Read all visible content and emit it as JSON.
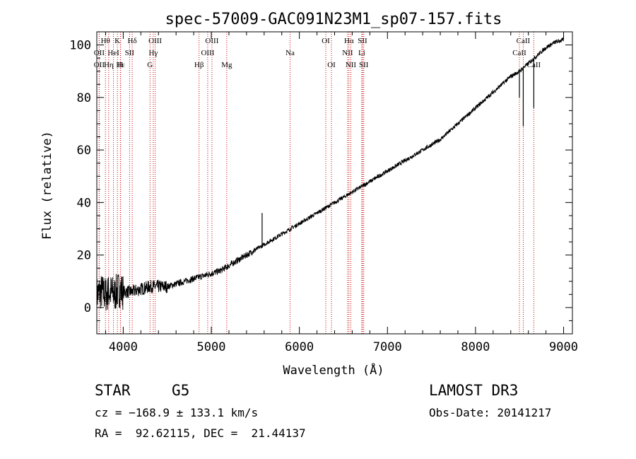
{
  "chart_data": {
    "type": "line",
    "title": "spec-57009-GAC091N23M1_sp07-157.fits",
    "xlabel": "Wavelength (Å)",
    "ylabel": "Flux (relative)",
    "xlim": [
      3700,
      9100
    ],
    "ylim": [
      -10,
      105
    ],
    "xticks": [
      4000,
      5000,
      6000,
      7000,
      8000,
      9000
    ],
    "xtick_labels": [
      "4000",
      "5000",
      "6000",
      "7000",
      "8000",
      "9000"
    ],
    "yticks": [
      0,
      20,
      40,
      60,
      80,
      100
    ],
    "ytick_labels": [
      "0",
      "20",
      "40",
      "60",
      "80",
      "100"
    ],
    "series": [
      {
        "name": "spectrum",
        "x": [
          3700,
          3750,
          3800,
          3850,
          3900,
          3950,
          4000,
          4100,
          4200,
          4300,
          4400,
          4500,
          4600,
          4700,
          4800,
          4900,
          5000,
          5100,
          5200,
          5300,
          5400,
          5500,
          5600,
          5700,
          5800,
          5900,
          6000,
          6100,
          6200,
          6300,
          6400,
          6500,
          6600,
          6700,
          6800,
          6900,
          7000,
          7100,
          7200,
          7300,
          7400,
          7500,
          7600,
          7700,
          7800,
          7900,
          8000,
          8100,
          8200,
          8300,
          8400,
          8500,
          8600,
          8700,
          8800,
          8900,
          9000
        ],
        "y": [
          5,
          6,
          5,
          6,
          5,
          7,
          6,
          6,
          7,
          8,
          8,
          8,
          9,
          10,
          11,
          12,
          13,
          14,
          16,
          18,
          20,
          22,
          24,
          26,
          28,
          30,
          32,
          34,
          36,
          38,
          40,
          42,
          44,
          46,
          48,
          50,
          52,
          54,
          56,
          58,
          60,
          62,
          64,
          67,
          70,
          73,
          76,
          79,
          82,
          85,
          88,
          90,
          93,
          96,
          99,
          101,
          102
        ]
      }
    ],
    "spikes": [
      {
        "x": 5577,
        "y": 36
      },
      {
        "x": 8498,
        "y": 80
      },
      {
        "x": 8542,
        "y": 69
      },
      {
        "x": 8662,
        "y": 76
      }
    ],
    "line_markers": [
      {
        "label": "Hθ",
        "x": 3798,
        "row": 1
      },
      {
        "label": "OII",
        "x": 3727,
        "row": 2
      },
      {
        "label": "OII",
        "x": 3727,
        "row": 3
      },
      {
        "label": "K",
        "x": 3934,
        "row": 1
      },
      {
        "label": "Hε",
        "x": 3970,
        "row": 3
      },
      {
        "label": "HeI",
        "x": 3889,
        "row": 2
      },
      {
        "label": "Hη",
        "x": 3835,
        "row": 3
      },
      {
        "label": "H",
        "x": 3968,
        "row": 3
      },
      {
        "label": "SII",
        "x": 4072,
        "row": 2
      },
      {
        "label": "Hδ",
        "x": 4102,
        "row": 1
      },
      {
        "label": "OIII",
        "x": 4363,
        "row": 1
      },
      {
        "label": "Hγ",
        "x": 4341,
        "row": 2
      },
      {
        "label": "G",
        "x": 4304,
        "row": 3
      },
      {
        "label": "OIII",
        "x": 5007,
        "row": 1
      },
      {
        "label": "OIII",
        "x": 4959,
        "row": 2
      },
      {
        "label": "Hβ",
        "x": 4861,
        "row": 3
      },
      {
        "label": "Mg",
        "x": 5175,
        "row": 3
      },
      {
        "label": "Na",
        "x": 5894,
        "row": 2
      },
      {
        "label": "OI",
        "x": 6300,
        "row": 1
      },
      {
        "label": "OI",
        "x": 6364,
        "row": 3
      },
      {
        "label": "Hα",
        "x": 6563,
        "row": 1
      },
      {
        "label": "SII",
        "x": 6717,
        "row": 1
      },
      {
        "label": "NII",
        "x": 6548,
        "row": 2
      },
      {
        "label": "Li",
        "x": 6708,
        "row": 2
      },
      {
        "label": "NII",
        "x": 6584,
        "row": 3
      },
      {
        "label": "SII",
        "x": 6731,
        "row": 3
      },
      {
        "label": "CaII",
        "x": 8542,
        "row": 1
      },
      {
        "label": "CaII",
        "x": 8498,
        "row": 2
      },
      {
        "label": "CaII",
        "x": 8662,
        "row": 3
      }
    ]
  },
  "info": {
    "class_label": "STAR",
    "subclass": "G5",
    "survey": "LAMOST DR3",
    "cz_text": "cz = −168.9 ± 133.1 km/s",
    "obs_date": "Obs-Date: 20141217",
    "radec_text": "RA =  92.62115, DEC =  21.44137"
  },
  "colors": {
    "spectrum": "#000000",
    "marker_line": "#cc0000",
    "frame": "#000000"
  }
}
